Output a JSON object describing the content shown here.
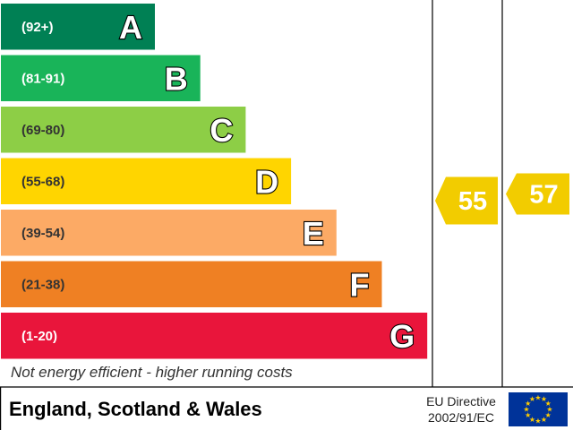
{
  "chart_data": {
    "type": "bar",
    "bands": [
      {
        "letter": "A",
        "range": "(92+)",
        "color": "#008054",
        "range_color": "#ffffff"
      },
      {
        "letter": "B",
        "range": "(81-91)",
        "color": "#19b459",
        "range_color": "#ffffff"
      },
      {
        "letter": "C",
        "range": "(69-80)",
        "color": "#8dce46",
        "range_color": "#333333"
      },
      {
        "letter": "D",
        "range": "(55-68)",
        "color": "#ffd500",
        "range_color": "#333333"
      },
      {
        "letter": "E",
        "range": "(39-54)",
        "color": "#fcaa65",
        "range_color": "#333333"
      },
      {
        "letter": "F",
        "range": "(21-38)",
        "color": "#ef8023",
        "range_color": "#333333"
      },
      {
        "letter": "G",
        "range": "(1-20)",
        "color": "#e9153b",
        "range_color": "#ffffff"
      }
    ],
    "ratings": [
      {
        "value": "55",
        "band": "D",
        "color": "#f2cc00"
      },
      {
        "value": "57",
        "band": "D",
        "color": "#f2cc00"
      }
    ],
    "bottom_note": "Not energy efficient - higher running costs"
  },
  "footer": {
    "region": "England, Scotland & Wales",
    "directive_line1": "EU Directive",
    "directive_line2": "2002/91/EC"
  },
  "flag": {
    "background": "#003399",
    "stars": "#ffcc00",
    "icon": "eu-flag-icon"
  }
}
